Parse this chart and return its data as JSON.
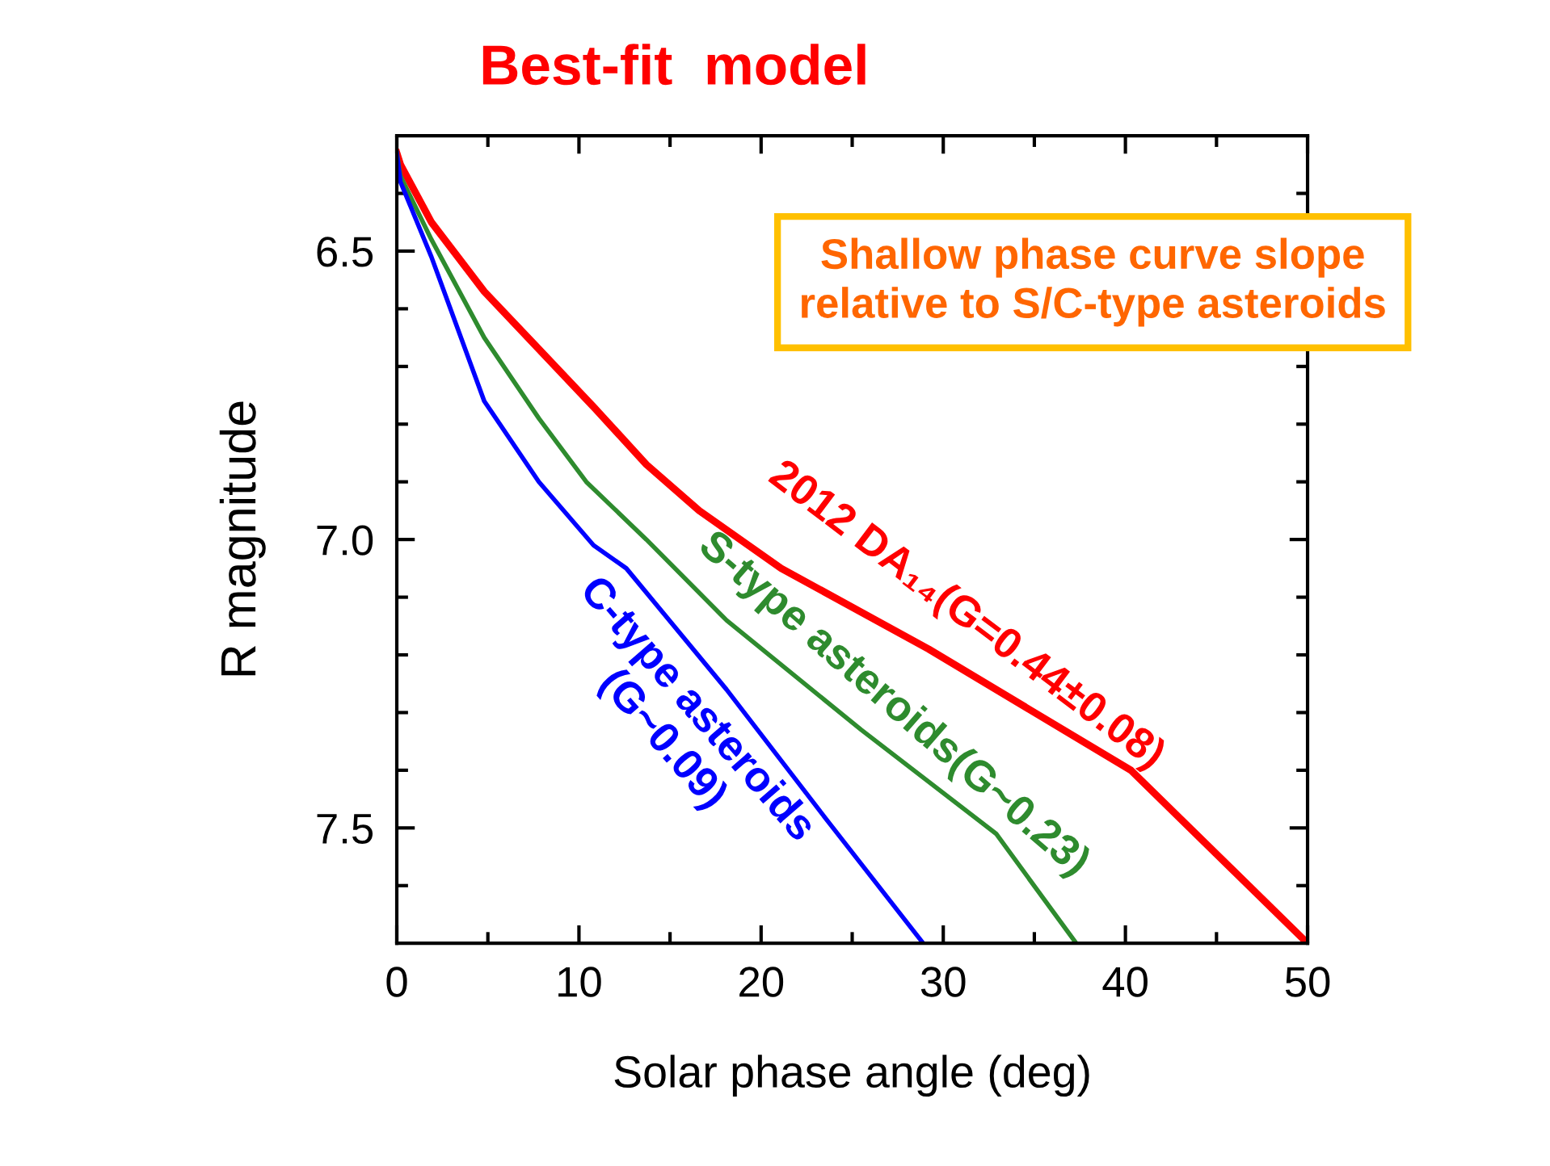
{
  "chart_data": {
    "type": "line",
    "title": "Best-fit  model",
    "xlabel": "Solar phase angle (deg)",
    "ylabel": "R magnitude",
    "xlim": [
      0,
      50
    ],
    "xticks": [
      0,
      10,
      20,
      30,
      40,
      50
    ],
    "ylim": [
      7.7,
      6.3
    ],
    "yticks": [
      6.5,
      {
        "value": 7,
        "label": "7.0"
      },
      7.5
    ],
    "grid": false,
    "legend": false,
    "annotations": [
      "Shallow phase curve slope\nrelative to S/C-type asteroids"
    ],
    "series": [
      {
        "name": "2012 DA₁₄(G=0.44±0.08)",
        "color": "#ff0000",
        "x": [
          0,
          0.2,
          1.9,
          4.8,
          7.8,
          10.8,
          13.7,
          16.6,
          21.1,
          29.2,
          40.3,
          50
        ],
        "values": [
          6.33,
          6.35,
          6.45,
          6.57,
          6.67,
          6.77,
          6.87,
          6.95,
          7.05,
          7.19,
          7.4,
          7.7
        ]
      },
      {
        "name": "S-type asteroids(G~0.23)",
        "color": "#2e8b2e",
        "x": [
          0,
          0.2,
          1.9,
          4.8,
          7.8,
          10.4,
          13.7,
          18.1,
          25.5,
          32.9,
          37.3
        ],
        "values": [
          6.33,
          6.37,
          6.48,
          6.65,
          6.79,
          6.9,
          7.0,
          7.14,
          7.33,
          7.51,
          7.7
        ]
      },
      {
        "name": "C-type asteroids\n(G~0.09)",
        "color": "#0000ff",
        "x": [
          0,
          0.2,
          1.9,
          4.8,
          7.8,
          10.8,
          12.6,
          18.1,
          23.7,
          28.9
        ],
        "values": [
          6.33,
          6.38,
          6.51,
          6.76,
          6.9,
          7.01,
          7.05,
          7.26,
          7.49,
          7.7
        ]
      }
    ]
  }
}
